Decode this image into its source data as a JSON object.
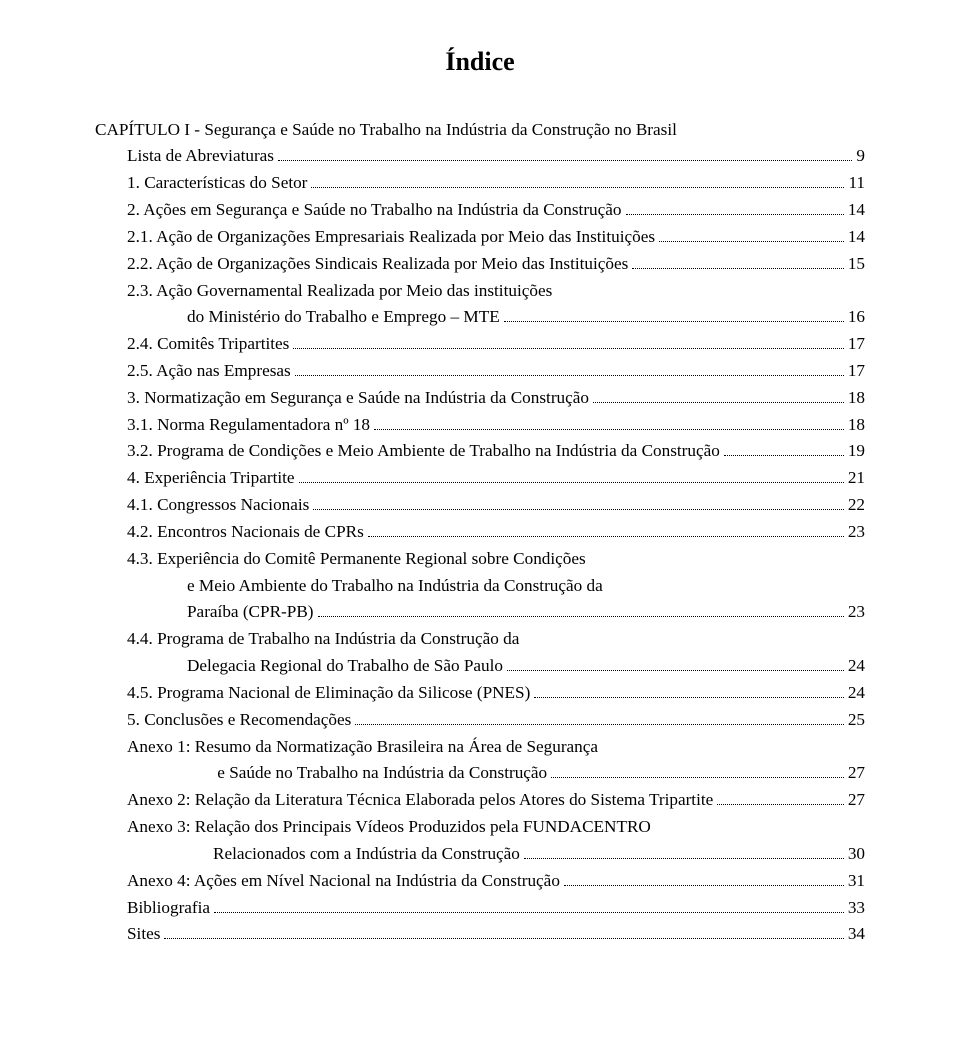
{
  "title": "Índice",
  "entries": [
    {
      "label": "CAPÍTULO I - Segurança e Saúde no Trabalho na Indústria da Construção no Brasil",
      "page": null,
      "indent": 0
    },
    {
      "label": "Lista de Abreviaturas",
      "page": "9",
      "indent": 1
    },
    {
      "label": "1. Características do Setor",
      "page": "11",
      "indent": 1
    },
    {
      "label": "2. Ações em Segurança e Saúde no Trabalho na Indústria da Construção",
      "page": "14",
      "indent": 1
    },
    {
      "label": "2.1. Ação de Organizações Empresariais Realizada por Meio das Instituições",
      "page": "14",
      "indent": 1
    },
    {
      "label": "2.2. Ação de Organizações Sindicais Realizada por Meio das Instituições",
      "page": "15",
      "indent": 1
    },
    {
      "label": "2.3. Ação Governamental Realizada por Meio das instituições",
      "page": null,
      "indent": 1
    },
    {
      "label": "do Ministério do Trabalho e Emprego – MTE",
      "page": "16",
      "indent": 2
    },
    {
      "label": "2.4. Comitês Tripartites",
      "page": "17",
      "indent": 1
    },
    {
      "label": "2.5. Ação nas Empresas",
      "page": "17",
      "indent": 1
    },
    {
      "label": "3. Normatização em Segurança e Saúde na Indústria da Construção",
      "page": "18",
      "indent": 1
    },
    {
      "label": "3.1. Norma Regulamentadora nº 18",
      "page": "18",
      "indent": 1
    },
    {
      "label": "3.2. Programa de Condições e Meio Ambiente de Trabalho na Indústria da Construção",
      "page": "19",
      "indent": 1
    },
    {
      "label": "4. Experiência Tripartite",
      "page": "21",
      "indent": 1
    },
    {
      "label": "4.1. Congressos Nacionais",
      "page": "22",
      "indent": 1
    },
    {
      "label": "4.2. Encontros Nacionais de CPRs",
      "page": "23",
      "indent": 1
    },
    {
      "label": "4.3. Experiência do Comitê Permanente Regional sobre Condições",
      "page": null,
      "indent": 1
    },
    {
      "label": "e Meio Ambiente do Trabalho na Indústria da Construção da",
      "page": null,
      "indent": 2
    },
    {
      "label": "Paraíba (CPR-PB)",
      "page": "23",
      "indent": 2
    },
    {
      "label": "4.4. Programa de Trabalho na Indústria da Construção da",
      "page": null,
      "indent": 1
    },
    {
      "label": "Delegacia Regional do Trabalho de São Paulo",
      "page": "24",
      "indent": 2
    },
    {
      "label": "4.5. Programa Nacional de Eliminação da Silicose (PNES)",
      "page": "24",
      "indent": 1
    },
    {
      "label": "5. Conclusões e Recomendações",
      "page": "25",
      "indent": 1
    },
    {
      "label": "Anexo 1: Resumo da Normatização Brasileira na Área de Segurança",
      "page": null,
      "indent": 1
    },
    {
      "label": " e Saúde no Trabalho na Indústria da Construção",
      "page": "27",
      "indent": 3
    },
    {
      "label": "Anexo 2: Relação da Literatura Técnica Elaborada pelos Atores do Sistema Tripartite",
      "page": "27",
      "indent": 1
    },
    {
      "label": "Anexo 3: Relação dos Principais Vídeos Produzidos pela FUNDACENTRO",
      "page": null,
      "indent": 1
    },
    {
      "label": "Relacionados com a Indústria da Construção",
      "page": "30",
      "indent": 3
    },
    {
      "label": "Anexo 4: Ações em Nível Nacional na Indústria da Construção",
      "page": "31",
      "indent": 1
    },
    {
      "label": "Bibliografia",
      "page": "33",
      "indent": 1
    },
    {
      "label": "Sites",
      "page": "34",
      "indent": 1
    }
  ]
}
